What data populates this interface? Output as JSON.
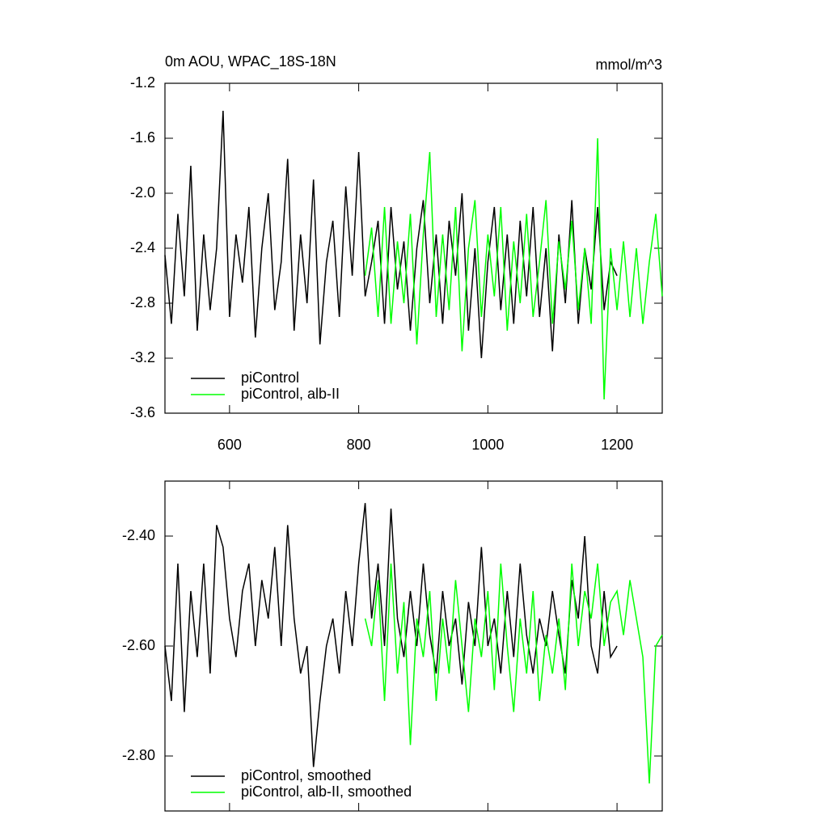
{
  "chart_data": [
    {
      "type": "line",
      "title": "0m AOU, WPAC_18S-18N",
      "units": "mmol/m^3",
      "xlim": [
        500,
        1270
      ],
      "xticks": [
        600,
        800,
        1000,
        1200
      ],
      "ylim": [
        -3.6,
        -1.2
      ],
      "yticks": [
        -3.6,
        -3.2,
        -2.8,
        -2.4,
        {
          "value": -2,
          "label": "-2.0"
        },
        -1.6,
        -1.2
      ],
      "series": [
        {
          "name": "piControl",
          "color": "#000000",
          "x": [
            500,
            510,
            520,
            530,
            540,
            550,
            560,
            570,
            580,
            590,
            600,
            610,
            620,
            630,
            640,
            650,
            660,
            670,
            680,
            690,
            700,
            710,
            720,
            730,
            740,
            750,
            760,
            770,
            780,
            790,
            800,
            810,
            820,
            830,
            840,
            850,
            860,
            870,
            880,
            890,
            900,
            910,
            920,
            930,
            940,
            950,
            960,
            970,
            980,
            990,
            1000,
            1010,
            1020,
            1030,
            1040,
            1050,
            1060,
            1070,
            1080,
            1090,
            1100,
            1110,
            1120,
            1130,
            1140,
            1150,
            1160,
            1170,
            1180,
            1190,
            1200
          ],
          "values": [
            -2.45,
            -2.95,
            -2.15,
            -2.75,
            -1.8,
            -3.0,
            -2.3,
            -2.85,
            -2.4,
            -1.4,
            -2.9,
            -2.3,
            -2.65,
            -2.1,
            -3.05,
            -2.4,
            -2.0,
            -2.85,
            -2.5,
            -1.75,
            -3.0,
            -2.3,
            -2.8,
            -1.9,
            -3.1,
            -2.5,
            -2.2,
            -2.9,
            -1.95,
            -2.6,
            -1.7,
            -2.75,
            -2.5,
            -2.2,
            -2.95,
            -2.1,
            -2.7,
            -2.35,
            -3.0,
            -2.4,
            -2.05,
            -2.8,
            -2.3,
            -2.95,
            -2.2,
            -2.6,
            -2.0,
            -3.0,
            -2.4,
            -3.2,
            -2.5,
            -2.1,
            -2.85,
            -2.3,
            -2.95,
            -2.2,
            -2.75,
            -2.1,
            -2.9,
            -2.4,
            -3.15,
            -2.3,
            -2.8,
            -2.05,
            -2.95,
            -2.4,
            -2.7,
            -2.1,
            -2.85,
            -2.5,
            -2.6
          ]
        },
        {
          "name": "piControl, alb-II",
          "color": "#00ff00",
          "x": [
            810,
            820,
            830,
            840,
            850,
            860,
            870,
            880,
            890,
            900,
            910,
            920,
            930,
            940,
            950,
            960,
            970,
            980,
            990,
            1000,
            1010,
            1020,
            1030,
            1040,
            1050,
            1060,
            1070,
            1080,
            1090,
            1100,
            1110,
            1120,
            1130,
            1140,
            1150,
            1160,
            1170,
            1180,
            1190,
            1200,
            1210,
            1220,
            1230,
            1240,
            1250,
            1260,
            1270
          ],
          "values": [
            -2.6,
            -2.25,
            -2.9,
            -2.1,
            -2.95,
            -2.35,
            -2.8,
            -2.15,
            -3.1,
            -2.3,
            -1.7,
            -2.9,
            -2.3,
            -2.85,
            -2.1,
            -3.15,
            -2.4,
            -2.05,
            -2.9,
            -2.3,
            -2.75,
            -2.1,
            -3.0,
            -2.35,
            -2.8,
            -2.15,
            -2.9,
            -2.5,
            -2.05,
            -2.95,
            -2.35,
            -2.7,
            -2.2,
            -2.85,
            -2.4,
            -2.95,
            -1.6,
            -3.5,
            -2.4,
            -2.85,
            -2.35,
            -2.9,
            -2.4,
            -2.95,
            -2.5,
            -2.15,
            -2.75
          ]
        }
      ]
    },
    {
      "type": "line",
      "xlim": [
        500,
        1270
      ],
      "xticks": [
        600,
        800,
        1000,
        1200
      ],
      "ylim": [
        -2.9,
        -2.3
      ],
      "yticks": [
        {
          "value": -2.8,
          "label": "-2.80"
        },
        {
          "value": -2.6,
          "label": "-2.60"
        },
        {
          "value": -2.4,
          "label": "-2.40"
        }
      ],
      "series": [
        {
          "name": "piControl, smoothed",
          "color": "#000000",
          "x": [
            500,
            510,
            520,
            530,
            540,
            550,
            560,
            570,
            580,
            590,
            600,
            610,
            620,
            630,
            640,
            650,
            660,
            670,
            680,
            690,
            700,
            710,
            720,
            730,
            740,
            750,
            760,
            770,
            780,
            790,
            800,
            810,
            820,
            830,
            840,
            850,
            860,
            870,
            880,
            890,
            900,
            910,
            920,
            930,
            940,
            950,
            960,
            970,
            980,
            990,
            1000,
            1010,
            1020,
            1030,
            1040,
            1050,
            1060,
            1070,
            1080,
            1090,
            1100,
            1110,
            1120,
            1130,
            1140,
            1150,
            1160,
            1170,
            1180,
            1190,
            1200
          ],
          "values": [
            -2.6,
            -2.7,
            -2.45,
            -2.72,
            -2.5,
            -2.62,
            -2.45,
            -2.65,
            -2.38,
            -2.42,
            -2.55,
            -2.62,
            -2.5,
            -2.45,
            -2.6,
            -2.48,
            -2.55,
            -2.42,
            -2.6,
            -2.38,
            -2.55,
            -2.65,
            -2.6,
            -2.82,
            -2.7,
            -2.6,
            -2.55,
            -2.65,
            -2.5,
            -2.6,
            -2.45,
            -2.34,
            -2.55,
            -2.45,
            -2.6,
            -2.35,
            -2.55,
            -2.62,
            -2.5,
            -2.6,
            -2.45,
            -2.58,
            -2.65,
            -2.5,
            -2.6,
            -2.55,
            -2.67,
            -2.52,
            -2.6,
            -2.42,
            -2.6,
            -2.55,
            -2.65,
            -2.5,
            -2.62,
            -2.45,
            -2.58,
            -2.65,
            -2.55,
            -2.6,
            -2.5,
            -2.58,
            -2.65,
            -2.48,
            -2.55,
            -2.4,
            -2.6,
            -2.65,
            -2.5,
            -2.62,
            -2.6
          ]
        },
        {
          "name": "piControl, alb-II, smoothed",
          "color": "#00ff00",
          "x": [
            810,
            820,
            830,
            840,
            850,
            860,
            870,
            880,
            890,
            900,
            910,
            920,
            930,
            940,
            950,
            960,
            970,
            980,
            990,
            1000,
            1010,
            1020,
            1030,
            1040,
            1050,
            1060,
            1070,
            1080,
            1090,
            1100,
            1110,
            1120,
            1130,
            1140,
            1150,
            1160,
            1170,
            1180,
            1190,
            1200,
            1210,
            1220,
            1230,
            1240,
            1250,
            1260,
            1270
          ],
          "values": [
            -2.55,
            -2.6,
            -2.48,
            -2.7,
            -2.45,
            -2.65,
            -2.52,
            -2.78,
            -2.55,
            -2.62,
            -2.5,
            -2.7,
            -2.55,
            -2.65,
            -2.48,
            -2.6,
            -2.72,
            -2.55,
            -2.62,
            -2.5,
            -2.68,
            -2.45,
            -2.6,
            -2.72,
            -2.55,
            -2.65,
            -2.5,
            -2.7,
            -2.58,
            -2.65,
            -2.55,
            -2.68,
            -2.45,
            -2.6,
            -2.5,
            -2.55,
            -2.45,
            -2.6,
            -2.52,
            -2.5,
            -2.58,
            -2.48,
            -2.55,
            -2.62,
            -2.85,
            -2.6,
            -2.58
          ]
        }
      ]
    }
  ]
}
